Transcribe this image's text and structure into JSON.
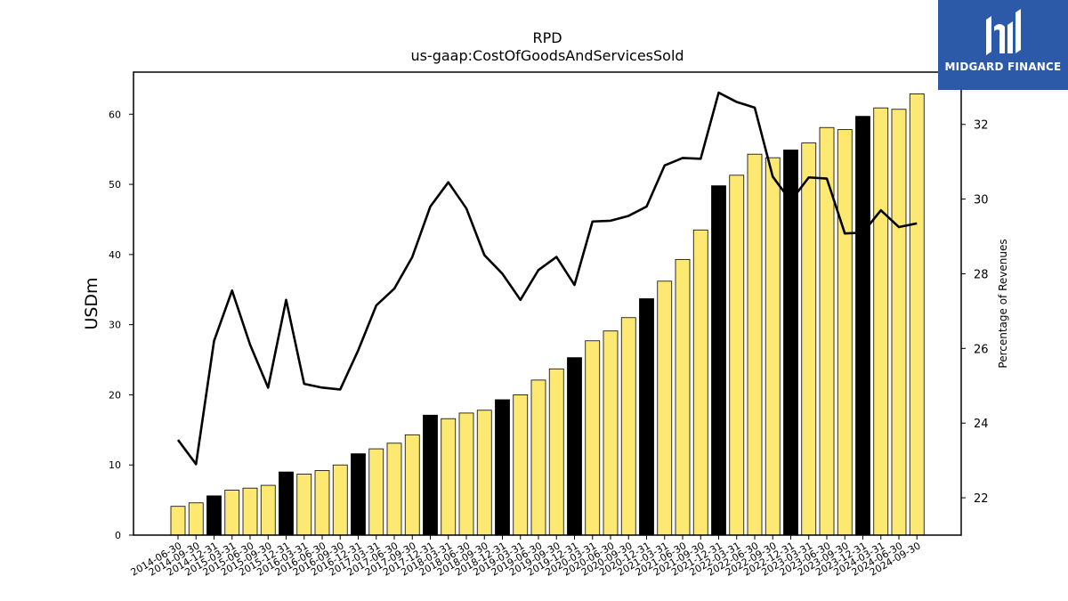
{
  "chart_data": {
    "type": "bar",
    "title": "RPD",
    "subtitle": "us-gaap:CostOfGoodsAndServicesSold",
    "ylabel": "USDm",
    "ylabel_right": "Percentage of Revenues",
    "ylim": [
      0,
      66
    ],
    "ylim_right": [
      21,
      33.4
    ],
    "yticks": [
      0,
      10,
      20,
      30,
      40,
      50,
      60
    ],
    "yticks_right": [
      22,
      24,
      26,
      28,
      30,
      32
    ],
    "categories": [
      "2014-06-30",
      "2014-09-30",
      "2014-12-31",
      "2015-03-31",
      "2015-06-30",
      "2015-09-30",
      "2015-12-31",
      "2016-03-31",
      "2016-06-30",
      "2016-09-30",
      "2016-12-31",
      "2017-03-31",
      "2017-06-30",
      "2017-09-30",
      "2017-12-31",
      "2018-03-31",
      "2018-06-30",
      "2018-09-30",
      "2018-12-31",
      "2019-03-31",
      "2019-06-30",
      "2019-09-30",
      "2019-12-31",
      "2020-03-31",
      "2020-06-30",
      "2020-09-30",
      "2020-12-31",
      "2021-03-31",
      "2021-06-30",
      "2021-09-30",
      "2021-12-31",
      "2022-03-31",
      "2022-06-30",
      "2022-09-30",
      "2022-12-31",
      "2023-03-31",
      "2023-06-30",
      "2023-09-30",
      "2023-12-31",
      "2024-03-31",
      "2024-06-30",
      "2024-09-30"
    ],
    "series": [
      {
        "type": "bar",
        "axis": "left",
        "values": [
          4.1,
          4.6,
          5.6,
          6.4,
          6.7,
          7.1,
          9.0,
          8.7,
          9.2,
          10.0,
          11.6,
          12.3,
          13.1,
          14.3,
          17.1,
          16.6,
          17.4,
          17.8,
          19.3,
          20.0,
          22.1,
          23.7,
          25.3,
          27.7,
          29.1,
          31.0,
          33.7,
          36.2,
          39.3,
          43.5,
          49.8,
          51.3,
          54.3,
          53.8,
          54.9,
          55.9,
          58.1,
          57.8,
          59.7,
          60.9,
          60.7,
          62.9
        ],
        "highlight": [
          false,
          false,
          true,
          false,
          false,
          false,
          true,
          false,
          false,
          false,
          true,
          false,
          false,
          false,
          true,
          false,
          false,
          false,
          true,
          false,
          false,
          false,
          true,
          false,
          false,
          false,
          true,
          false,
          false,
          false,
          true,
          false,
          false,
          false,
          true,
          false,
          false,
          false,
          true,
          false,
          false,
          false
        ]
      },
      {
        "type": "line",
        "axis": "right",
        "values": [
          23.55,
          22.9,
          26.2,
          27.55,
          26.1,
          24.95,
          27.3,
          25.05,
          24.95,
          24.9,
          25.95,
          27.15,
          27.6,
          28.45,
          29.8,
          30.45,
          29.75,
          28.5,
          28.0,
          27.3,
          28.1,
          28.45,
          27.7,
          29.4,
          29.42,
          29.55,
          29.8,
          30.9,
          31.1,
          31.08,
          32.85,
          32.6,
          32.45,
          30.6,
          29.95,
          30.58,
          30.55,
          29.08,
          29.1,
          29.7,
          29.25,
          29.35
        ]
      }
    ],
    "colors": {
      "bar": "#fde972",
      "bar_highlight": "#000000",
      "line": "#000000"
    }
  },
  "logo": {
    "name": "MIDGARD FINANCE",
    "color": "#2c59a8"
  }
}
